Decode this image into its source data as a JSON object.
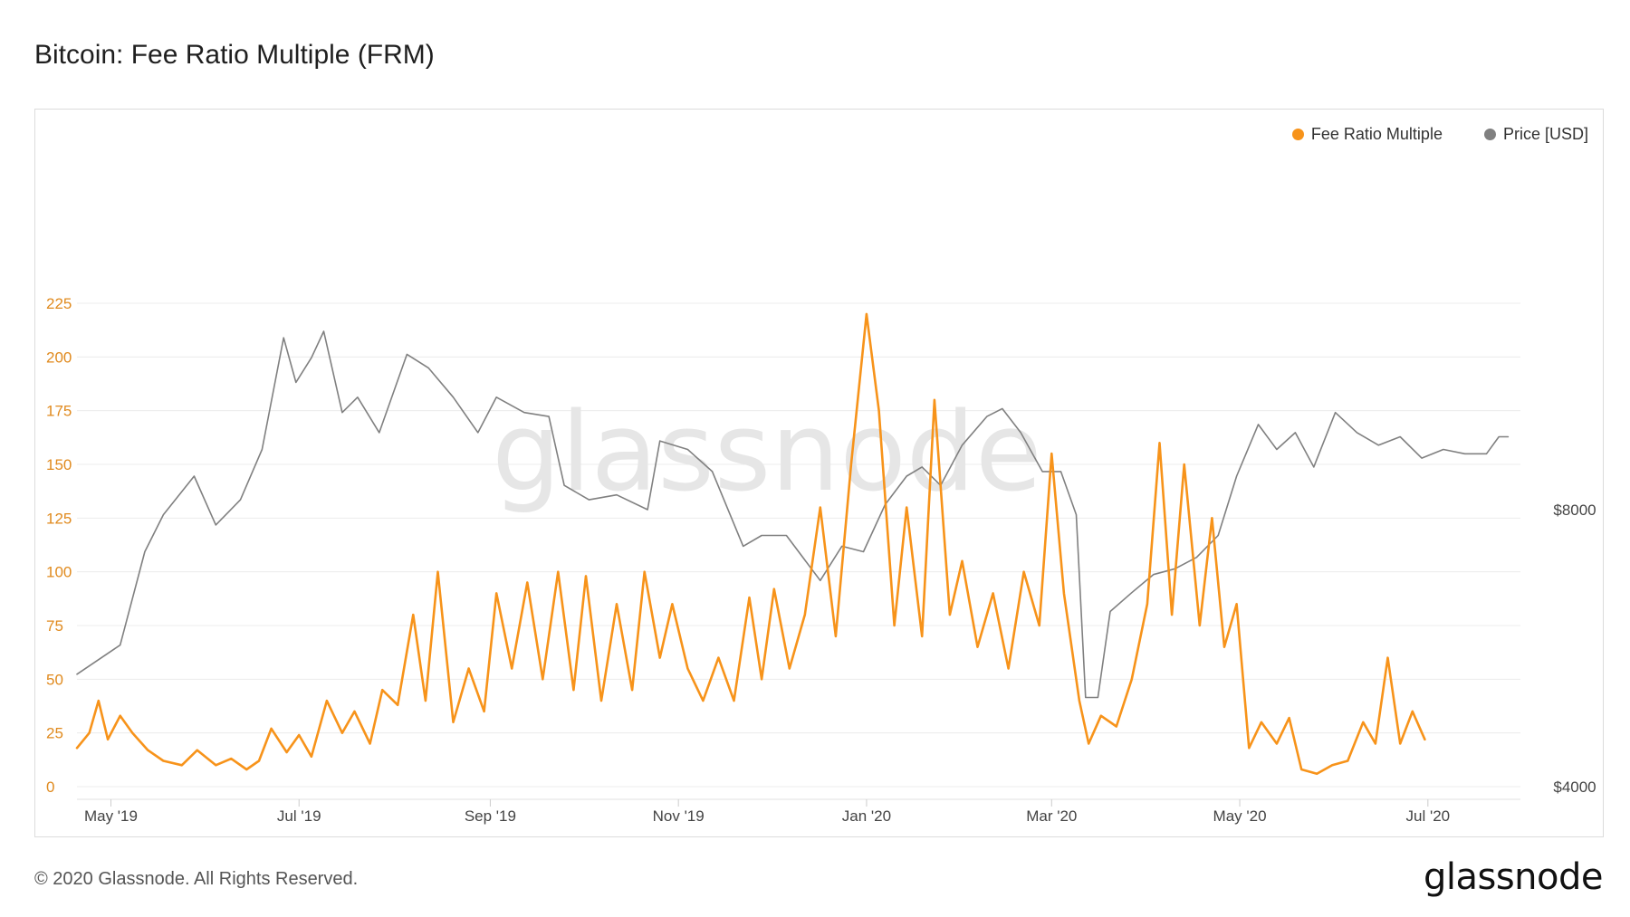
{
  "title": "Bitcoin: Fee Ratio Multiple (FRM)",
  "watermark": "glassnode",
  "footer": {
    "copyright": "© 2020 Glassnode. All Rights Reserved.",
    "logo": "glassnode"
  },
  "colors": {
    "frm": "#f7931a",
    "price": "#808080",
    "grid": "#ececec",
    "left_axis_text": "#e08a1e",
    "right_axis_text": "#444444"
  },
  "chart_data": {
    "type": "line",
    "legend": [
      {
        "name": "Fee Ratio Multiple",
        "color": "#f7931a"
      },
      {
        "name": "Price [USD]",
        "color": "#808080"
      }
    ],
    "legend_position": "top-right",
    "grid": true,
    "x_range": [
      "2019-04-20",
      "2020-07-31"
    ],
    "x_ticks": [
      {
        "date": "2019-05-01",
        "label": "May '19"
      },
      {
        "date": "2019-07-01",
        "label": "Jul '19"
      },
      {
        "date": "2019-09-01",
        "label": "Sep '19"
      },
      {
        "date": "2019-11-01",
        "label": "Nov '19"
      },
      {
        "date": "2020-01-01",
        "label": "Jan '20"
      },
      {
        "date": "2020-03-01",
        "label": "Mar '20"
      },
      {
        "date": "2020-05-01",
        "label": "May '20"
      },
      {
        "date": "2020-07-01",
        "label": "Jul '20"
      }
    ],
    "y_left": {
      "min": 0,
      "max": 225,
      "ticks": [
        0,
        25,
        50,
        75,
        100,
        125,
        150,
        175,
        200,
        225
      ]
    },
    "y_right": {
      "scale": "log",
      "ticks": [
        {
          "value": 4000,
          "label": "$4000"
        },
        {
          "value": 8000,
          "label": "$8000"
        }
      ]
    },
    "series": [
      {
        "name": "Fee Ratio Multiple",
        "axis": "left",
        "points": [
          [
            "2019-04-20",
            18
          ],
          [
            "2019-04-24",
            25
          ],
          [
            "2019-04-27",
            40
          ],
          [
            "2019-04-30",
            22
          ],
          [
            "2019-05-04",
            33
          ],
          [
            "2019-05-08",
            25
          ],
          [
            "2019-05-13",
            17
          ],
          [
            "2019-05-18",
            12
          ],
          [
            "2019-05-24",
            10
          ],
          [
            "2019-05-29",
            17
          ],
          [
            "2019-06-04",
            10
          ],
          [
            "2019-06-09",
            13
          ],
          [
            "2019-06-14",
            8
          ],
          [
            "2019-06-18",
            12
          ],
          [
            "2019-06-22",
            27
          ],
          [
            "2019-06-27",
            16
          ],
          [
            "2019-07-01",
            24
          ],
          [
            "2019-07-05",
            14
          ],
          [
            "2019-07-10",
            40
          ],
          [
            "2019-07-15",
            25
          ],
          [
            "2019-07-19",
            35
          ],
          [
            "2019-07-24",
            20
          ],
          [
            "2019-07-28",
            45
          ],
          [
            "2019-08-02",
            38
          ],
          [
            "2019-08-07",
            80
          ],
          [
            "2019-08-11",
            40
          ],
          [
            "2019-08-15",
            100
          ],
          [
            "2019-08-20",
            30
          ],
          [
            "2019-08-25",
            55
          ],
          [
            "2019-08-30",
            35
          ],
          [
            "2019-09-03",
            90
          ],
          [
            "2019-09-08",
            55
          ],
          [
            "2019-09-13",
            95
          ],
          [
            "2019-09-18",
            50
          ],
          [
            "2019-09-23",
            100
          ],
          [
            "2019-09-28",
            45
          ],
          [
            "2019-10-02",
            98
          ],
          [
            "2019-10-07",
            40
          ],
          [
            "2019-10-12",
            85
          ],
          [
            "2019-10-17",
            45
          ],
          [
            "2019-10-21",
            100
          ],
          [
            "2019-10-26",
            60
          ],
          [
            "2019-10-30",
            85
          ],
          [
            "2019-11-04",
            55
          ],
          [
            "2019-11-09",
            40
          ],
          [
            "2019-11-14",
            60
          ],
          [
            "2019-11-19",
            40
          ],
          [
            "2019-11-24",
            88
          ],
          [
            "2019-11-28",
            50
          ],
          [
            "2019-12-02",
            92
          ],
          [
            "2019-12-07",
            55
          ],
          [
            "2019-12-12",
            80
          ],
          [
            "2019-12-17",
            130
          ],
          [
            "2019-12-22",
            70
          ],
          [
            "2019-12-27",
            150
          ],
          [
            "2020-01-01",
            220
          ],
          [
            "2020-01-05",
            175
          ],
          [
            "2020-01-10",
            75
          ],
          [
            "2020-01-14",
            130
          ],
          [
            "2020-01-19",
            70
          ],
          [
            "2020-01-23",
            180
          ],
          [
            "2020-01-28",
            80
          ],
          [
            "2020-02-01",
            105
          ],
          [
            "2020-02-06",
            65
          ],
          [
            "2020-02-11",
            90
          ],
          [
            "2020-02-16",
            55
          ],
          [
            "2020-02-21",
            100
          ],
          [
            "2020-02-26",
            75
          ],
          [
            "2020-03-01",
            155
          ],
          [
            "2020-03-05",
            90
          ],
          [
            "2020-03-10",
            40
          ],
          [
            "2020-03-13",
            20
          ],
          [
            "2020-03-17",
            33
          ],
          [
            "2020-03-22",
            28
          ],
          [
            "2020-03-27",
            50
          ],
          [
            "2020-04-01",
            85
          ],
          [
            "2020-04-05",
            160
          ],
          [
            "2020-04-09",
            80
          ],
          [
            "2020-04-13",
            150
          ],
          [
            "2020-04-18",
            75
          ],
          [
            "2020-04-22",
            125
          ],
          [
            "2020-04-26",
            65
          ],
          [
            "2020-04-30",
            85
          ],
          [
            "2020-05-04",
            18
          ],
          [
            "2020-05-08",
            30
          ],
          [
            "2020-05-13",
            20
          ],
          [
            "2020-05-17",
            32
          ],
          [
            "2020-05-21",
            8
          ],
          [
            "2020-05-26",
            6
          ],
          [
            "2020-05-31",
            10
          ],
          [
            "2020-06-05",
            12
          ],
          [
            "2020-06-10",
            30
          ],
          [
            "2020-06-14",
            20
          ],
          [
            "2020-06-18",
            60
          ],
          [
            "2020-06-22",
            20
          ],
          [
            "2020-06-26",
            35
          ],
          [
            "2020-06-30",
            22
          ]
        ]
      },
      {
        "name": "Price [USD]",
        "axis": "right",
        "points": [
          [
            "2019-04-20",
            5300
          ],
          [
            "2019-05-04",
            5700
          ],
          [
            "2019-05-12",
            7200
          ],
          [
            "2019-05-18",
            7900
          ],
          [
            "2019-05-28",
            8700
          ],
          [
            "2019-06-04",
            7700
          ],
          [
            "2019-06-12",
            8200
          ],
          [
            "2019-06-19",
            9300
          ],
          [
            "2019-06-26",
            12300
          ],
          [
            "2019-06-30",
            11000
          ],
          [
            "2019-07-05",
            11700
          ],
          [
            "2019-07-09",
            12500
          ],
          [
            "2019-07-15",
            10200
          ],
          [
            "2019-07-20",
            10600
          ],
          [
            "2019-07-27",
            9700
          ],
          [
            "2019-08-05",
            11800
          ],
          [
            "2019-08-12",
            11400
          ],
          [
            "2019-08-20",
            10600
          ],
          [
            "2019-08-28",
            9700
          ],
          [
            "2019-09-03",
            10600
          ],
          [
            "2019-09-12",
            10200
          ],
          [
            "2019-09-20",
            10100
          ],
          [
            "2019-09-25",
            8500
          ],
          [
            "2019-10-03",
            8200
          ],
          [
            "2019-10-12",
            8300
          ],
          [
            "2019-10-22",
            8000
          ],
          [
            "2019-10-26",
            9500
          ],
          [
            "2019-11-04",
            9300
          ],
          [
            "2019-11-12",
            8800
          ],
          [
            "2019-11-22",
            7300
          ],
          [
            "2019-11-28",
            7500
          ],
          [
            "2019-12-06",
            7500
          ],
          [
            "2019-12-17",
            6700
          ],
          [
            "2019-12-24",
            7300
          ],
          [
            "2019-12-31",
            7200
          ],
          [
            "2020-01-07",
            8100
          ],
          [
            "2020-01-14",
            8700
          ],
          [
            "2020-01-19",
            8900
          ],
          [
            "2020-01-25",
            8500
          ],
          [
            "2020-02-01",
            9400
          ],
          [
            "2020-02-09",
            10100
          ],
          [
            "2020-02-14",
            10300
          ],
          [
            "2020-02-20",
            9700
          ],
          [
            "2020-02-27",
            8800
          ],
          [
            "2020-03-04",
            8800
          ],
          [
            "2020-03-09",
            7900
          ],
          [
            "2020-03-12",
            5000
          ],
          [
            "2020-03-16",
            5000
          ],
          [
            "2020-03-20",
            6200
          ],
          [
            "2020-03-27",
            6500
          ],
          [
            "2020-04-03",
            6800
          ],
          [
            "2020-04-10",
            6900
          ],
          [
            "2020-04-17",
            7100
          ],
          [
            "2020-04-24",
            7500
          ],
          [
            "2020-04-30",
            8700
          ],
          [
            "2020-05-07",
            9900
          ],
          [
            "2020-05-13",
            9300
          ],
          [
            "2020-05-19",
            9700
          ],
          [
            "2020-05-25",
            8900
          ],
          [
            "2020-06-01",
            10200
          ],
          [
            "2020-06-08",
            9700
          ],
          [
            "2020-06-15",
            9400
          ],
          [
            "2020-06-22",
            9600
          ],
          [
            "2020-06-29",
            9100
          ],
          [
            "2020-07-06",
            9300
          ],
          [
            "2020-07-13",
            9200
          ],
          [
            "2020-07-20",
            9200
          ],
          [
            "2020-07-24",
            9600
          ],
          [
            "2020-07-27",
            9600
          ]
        ]
      }
    ]
  }
}
